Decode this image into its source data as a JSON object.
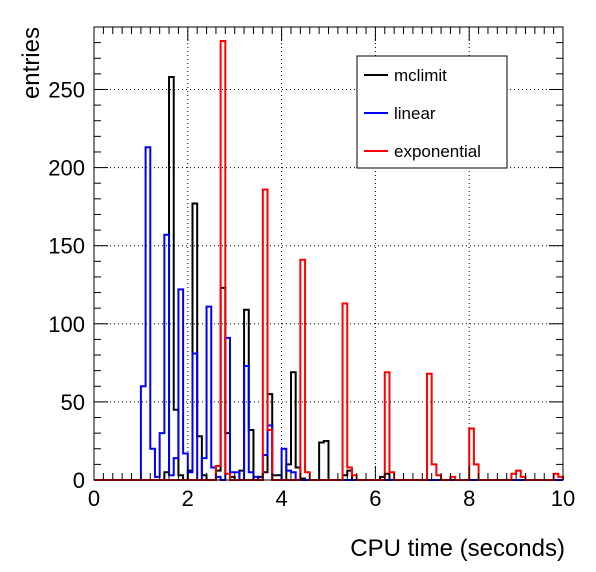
{
  "chart_data": {
    "type": "histogram-step",
    "xlabel": "CPU time (seconds)",
    "ylabel": "entries",
    "xlim": [
      0,
      10
    ],
    "ylim": [
      0,
      290
    ],
    "bin_width": 0.1,
    "grid": true,
    "legend_position": "top-right",
    "x_ticks": [
      0,
      2,
      4,
      6,
      8,
      10
    ],
    "y_ticks": [
      0,
      50,
      100,
      150,
      200,
      250
    ],
    "series": [
      {
        "name": "mclimit",
        "color": "#000000",
        "x": [
          1.5,
          1.6,
          1.7,
          1.8,
          2.0,
          2.1,
          2.2,
          2.3,
          2.6,
          2.7,
          2.8,
          2.9,
          3.1,
          3.2,
          3.3,
          3.5,
          3.6,
          3.7,
          3.8,
          3.9,
          4.1,
          4.2,
          4.3,
          4.4,
          4.8,
          4.9,
          5.3,
          5.4,
          6.1,
          6.2
        ],
        "y": [
          5,
          258,
          45,
          3,
          6,
          177,
          28,
          3,
          6,
          123,
          30,
          2,
          6,
          109,
          32,
          2,
          5,
          55,
          3,
          3,
          10,
          69,
          8,
          1,
          24,
          25,
          3,
          6,
          2,
          4
        ]
      },
      {
        "name": "linear",
        "color": "#0000ff",
        "x": [
          1.0,
          1.1,
          1.2,
          1.3,
          1.4,
          1.5,
          1.6,
          1.7,
          1.8,
          1.9,
          2.0,
          2.1,
          2.3,
          2.4,
          2.5,
          2.6,
          2.8,
          2.9,
          3.0,
          3.2,
          3.3,
          3.4,
          3.6,
          3.7,
          4.0,
          4.1,
          4.2
        ],
        "y": [
          60,
          213,
          20,
          2,
          30,
          157,
          3,
          14,
          122,
          17,
          5,
          81,
          14,
          111,
          8,
          2,
          91,
          5,
          5,
          73,
          5,
          2,
          16,
          35,
          20,
          6,
          5
        ]
      },
      {
        "name": "exponential",
        "color": "#ff0000",
        "x": [
          2.6,
          2.7,
          2.8,
          3.6,
          3.7,
          4.4,
          4.5,
          5.3,
          5.4,
          5.5,
          6.2,
          6.3,
          7.1,
          7.2,
          7.3,
          7.6,
          8.0,
          8.1,
          8.9,
          9.0,
          9.1,
          9.8,
          9.9
        ],
        "y": [
          9,
          281,
          4,
          186,
          32,
          141,
          5,
          113,
          8,
          3,
          69,
          5,
          68,
          10,
          3,
          2,
          33,
          10,
          4,
          6,
          2,
          4,
          2
        ]
      }
    ]
  }
}
